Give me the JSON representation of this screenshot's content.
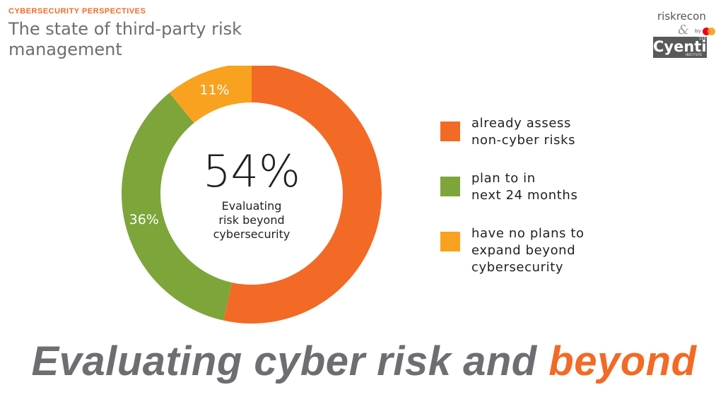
{
  "header": {
    "eyebrow": "CYBERSECURITY PERSPECTIVES",
    "title": "The state of third-party risk management"
  },
  "logo": {
    "riskrecon": "riskrecon",
    "amp": "&",
    "by": "by",
    "cyentia": "Cyentia",
    "cyentia_super": "110",
    "cyentia_sub": "INSTITUTE"
  },
  "colors": {
    "orange": "#f26a25",
    "green": "#7da53a",
    "amber": "#f8a21f",
    "text_gray": "#6d6e71"
  },
  "chart_data": {
    "type": "pie",
    "donut": true,
    "slices": [
      {
        "label": "already assess non-cyber risks",
        "value": 54,
        "color": "#f26a25",
        "data_label": ""
      },
      {
        "label": "plan to in next 24 months",
        "value": 36,
        "color": "#7da53a",
        "data_label": "36%"
      },
      {
        "label": "have no plans to expand beyond cybersecurity",
        "value": 11,
        "color": "#f8a21f",
        "data_label": "11%"
      }
    ],
    "center_value": "54%",
    "center_caption": "Evaluating risk beyond cybersecurity",
    "legend_position": "right"
  },
  "legend": [
    {
      "line1": "already assess",
      "line2": "non-cyber risks",
      "line3": ""
    },
    {
      "line1": "plan to in",
      "line2": "next 24 months",
      "line3": ""
    },
    {
      "line1": "have no plans to",
      "line2": "expand beyond",
      "line3": "cybersecurity"
    }
  ],
  "headline": {
    "main": "Evaluating cyber risk and ",
    "accent": "beyond"
  }
}
